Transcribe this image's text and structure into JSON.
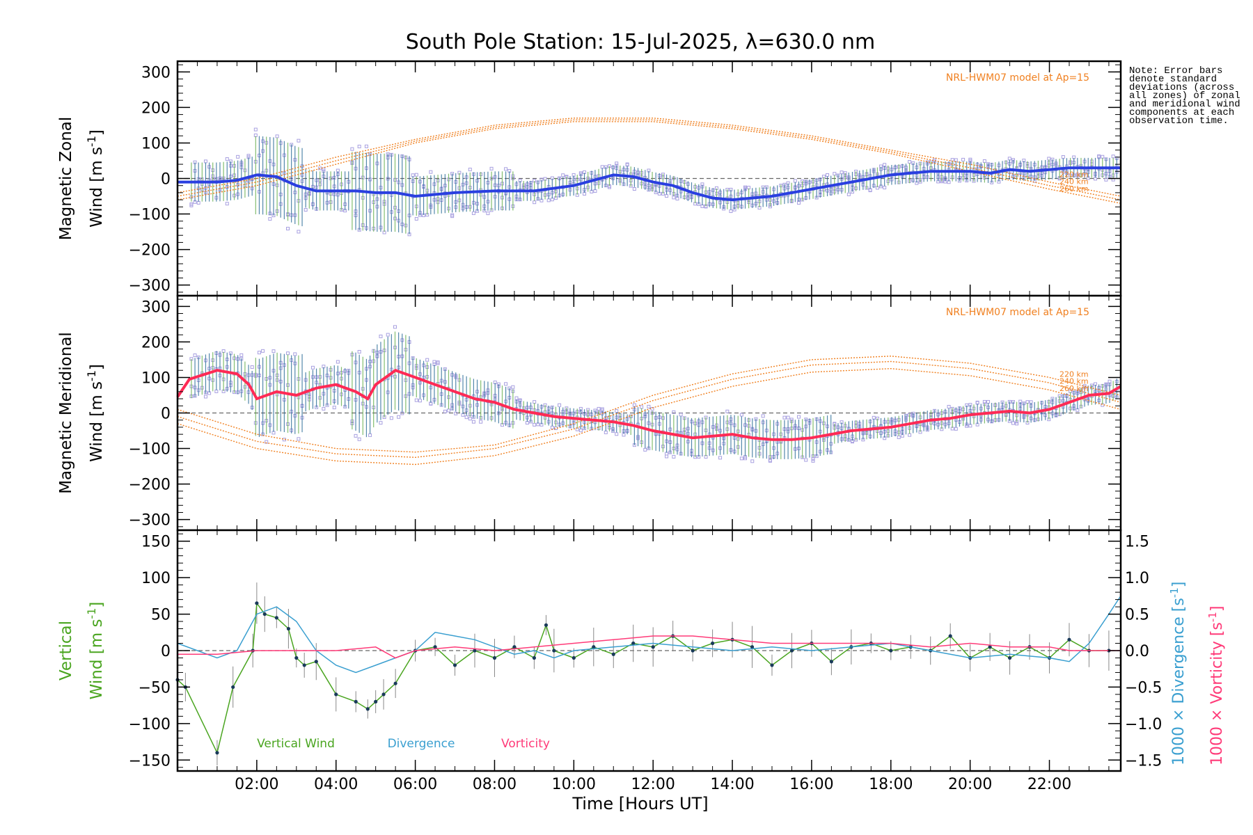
{
  "figure": {
    "title": "South Pole Station: 15-Jul-2025, λ=630.0 nm",
    "note": "Note: Error bars denote standard deviations (across all zones) of zonal and meridional wind components at each observation time."
  },
  "colors": {
    "zonal_line": "#2a3fe0",
    "meridional_line": "#ff2a55",
    "vertical": "#4aa520",
    "divergence": "#3a9fd0",
    "vorticity": "#ff3a78",
    "model": "#f08020",
    "scatter": "#a8a0e0",
    "errorbar": "#1a6090"
  },
  "chart_data": [
    {
      "id": "zonal",
      "type": "line",
      "ylabel": [
        "Magnetic Zonal",
        "Wind [m s",
        "-1",
        "]"
      ],
      "ylim": [
        -330,
        330
      ],
      "yticks": [
        300,
        200,
        100,
        0,
        -100,
        -200,
        -300
      ],
      "model_label": "NRL-HWM07 model at Ap=15",
      "model_alt_labels": [
        "220 km",
        "240 km",
        "260 km"
      ],
      "series": [
        {
          "name": "zonal mean wind",
          "x": [
            0.0,
            1.0,
            1.5,
            2.0,
            2.5,
            3.0,
            3.5,
            4.0,
            4.5,
            5.0,
            5.5,
            6.0,
            7.0,
            8.0,
            9.0,
            10.0,
            10.5,
            11.0,
            11.5,
            12.0,
            12.5,
            13.0,
            13.5,
            14.0,
            14.5,
            15.0,
            15.5,
            16.0,
            16.5,
            17.0,
            17.5,
            18.0,
            18.5,
            19.0,
            19.5,
            20.0,
            20.5,
            21.0,
            21.5,
            22.0,
            22.5,
            23.0,
            23.8
          ],
          "y": [
            -10,
            -10,
            -5,
            10,
            5,
            -20,
            -35,
            -35,
            -35,
            -40,
            -40,
            -50,
            -40,
            -35,
            -35,
            -20,
            -5,
            10,
            5,
            -10,
            -20,
            -40,
            -55,
            -60,
            -55,
            -50,
            -40,
            -30,
            -20,
            -10,
            0,
            10,
            15,
            20,
            20,
            20,
            15,
            25,
            20,
            25,
            30,
            30,
            30
          ]
        },
        {
          "name": "model 220 km",
          "x": [
            0,
            2,
            4,
            6,
            8,
            10,
            12,
            14,
            16,
            18,
            20,
            22,
            23.8
          ],
          "y": [
            -40,
            0,
            60,
            110,
            150,
            170,
            170,
            150,
            120,
            80,
            40,
            -10,
            -50
          ]
        },
        {
          "name": "model 240 km",
          "x": [
            0,
            2,
            4,
            6,
            8,
            10,
            12,
            14,
            16,
            18,
            20,
            22,
            23.8
          ],
          "y": [
            -50,
            -10,
            50,
            105,
            145,
            165,
            165,
            145,
            115,
            75,
            30,
            -20,
            -60
          ]
        },
        {
          "name": "model 260 km",
          "x": [
            0,
            2,
            4,
            6,
            8,
            10,
            12,
            14,
            16,
            18,
            20,
            22,
            23.8
          ],
          "y": [
            -60,
            -20,
            40,
            100,
            140,
            160,
            160,
            140,
            110,
            70,
            20,
            -30,
            -70
          ]
        }
      ]
    },
    {
      "id": "meridional",
      "type": "line",
      "ylabel": [
        "Magnetic Meridional",
        "Wind [m s",
        "-1",
        "]"
      ],
      "ylim": [
        -330,
        330
      ],
      "yticks": [
        300,
        200,
        100,
        0,
        -100,
        -200,
        -300
      ],
      "model_label": "NRL-HWM07 model at Ap=15",
      "model_alt_labels": [
        "220 km",
        "240 km",
        "260 km"
      ],
      "series": [
        {
          "name": "meridional mean wind",
          "x": [
            0.0,
            0.3,
            1.0,
            1.5,
            1.8,
            2.0,
            2.5,
            3.0,
            3.5,
            4.0,
            4.5,
            4.8,
            5.0,
            5.5,
            6.0,
            6.5,
            7.0,
            7.5,
            8.0,
            8.5,
            9.0,
            9.5,
            10.0,
            10.5,
            11.0,
            11.5,
            12.0,
            12.5,
            13.0,
            13.5,
            14.0,
            14.5,
            15.0,
            15.5,
            16.0,
            16.5,
            17.0,
            17.5,
            18.0,
            18.5,
            19.0,
            19.5,
            20.0,
            20.5,
            21.0,
            21.5,
            22.0,
            22.5,
            23.0,
            23.5,
            23.8
          ],
          "y": [
            45,
            95,
            120,
            110,
            80,
            40,
            60,
            50,
            70,
            80,
            60,
            40,
            80,
            120,
            100,
            80,
            60,
            40,
            30,
            10,
            0,
            -10,
            -15,
            -20,
            -25,
            -35,
            -50,
            -60,
            -70,
            -65,
            -60,
            -70,
            -75,
            -75,
            -70,
            -60,
            -50,
            -45,
            -40,
            -30,
            -20,
            -15,
            -5,
            0,
            5,
            0,
            10,
            30,
            50,
            55,
            75
          ]
        },
        {
          "name": "model 220 km",
          "x": [
            0,
            2,
            4,
            6,
            8,
            10,
            12,
            14,
            16,
            18,
            20,
            22,
            23.8
          ],
          "y": [
            10,
            -60,
            -100,
            -110,
            -90,
            -30,
            50,
            110,
            150,
            160,
            140,
            100,
            50
          ]
        },
        {
          "name": "model 240 km",
          "x": [
            0,
            2,
            4,
            6,
            8,
            10,
            12,
            14,
            16,
            18,
            20,
            22,
            23.8
          ],
          "y": [
            -10,
            -80,
            -115,
            -125,
            -100,
            -45,
            35,
            95,
            135,
            145,
            125,
            85,
            30
          ]
        },
        {
          "name": "model 260 km",
          "x": [
            0,
            2,
            4,
            6,
            8,
            10,
            12,
            14,
            16,
            18,
            20,
            22,
            23.8
          ],
          "y": [
            -30,
            -100,
            -135,
            -145,
            -120,
            -65,
            15,
            75,
            115,
            125,
            105,
            65,
            10
          ]
        }
      ]
    },
    {
      "id": "vertical",
      "type": "line",
      "ylabel_left": [
        "Vertical",
        "Wind [m s",
        "-1",
        "]"
      ],
      "ylim": [
        -165,
        165
      ],
      "yticks": [
        150,
        100,
        50,
        0,
        -50,
        -100,
        -150
      ],
      "y2label_div": [
        "1000 × Divergence [s",
        "-1",
        "]"
      ],
      "y2label_vor": [
        "1000 × Vorticity [s",
        "-1",
        "]"
      ],
      "y2lim": [
        -1.65,
        1.65
      ],
      "y2ticks": [
        "1.5",
        "1.0",
        "0.5",
        "0.0",
        "−0.5",
        "−1.0",
        "−1.5"
      ],
      "y2tickvals": [
        1.5,
        1.0,
        0.5,
        0.0,
        -0.5,
        -1.0,
        -1.5
      ],
      "legend": [
        "Vertical Wind",
        "Divergence",
        "Vorticity"
      ],
      "series": [
        {
          "name": "Vertical Wind",
          "x": [
            0.0,
            0.2,
            1.0,
            1.4,
            1.9,
            2.0,
            2.2,
            2.5,
            2.8,
            3.0,
            3.2,
            3.5,
            4.0,
            4.5,
            4.8,
            5.0,
            5.2,
            5.5,
            6.0,
            6.5,
            7.0,
            7.5,
            8.0,
            8.5,
            9.0,
            9.3,
            9.5,
            10.0,
            10.5,
            11.0,
            11.5,
            12.0,
            12.5,
            13.0,
            13.5,
            14.0,
            14.5,
            15.0,
            15.5,
            16.0,
            16.5,
            17.0,
            17.5,
            18.0,
            18.5,
            19.0,
            19.5,
            20.0,
            20.5,
            21.0,
            21.5,
            22.0,
            22.5,
            23.0,
            23.5
          ],
          "y": [
            -40,
            -50,
            -140,
            -50,
            0,
            65,
            50,
            45,
            30,
            -10,
            -20,
            -15,
            -60,
            -70,
            -80,
            -70,
            -60,
            -45,
            0,
            5,
            -20,
            0,
            -10,
            5,
            -10,
            35,
            0,
            -10,
            5,
            -5,
            10,
            5,
            20,
            0,
            10,
            15,
            5,
            -20,
            0,
            10,
            -15,
            5,
            10,
            0,
            5,
            0,
            20,
            -10,
            5,
            -10,
            5,
            -10,
            15,
            0,
            0
          ]
        },
        {
          "name": "Divergence",
          "x": [
            0.0,
            1.0,
            1.5,
            2.0,
            2.5,
            3.0,
            3.5,
            4.0,
            4.5,
            5.0,
            5.5,
            6.0,
            6.5,
            7.0,
            7.5,
            8.0,
            8.5,
            9.0,
            9.5,
            10.0,
            11.0,
            12.0,
            13.0,
            14.0,
            15.0,
            16.0,
            17.0,
            18.0,
            19.0,
            20.0,
            21.0,
            22.0,
            22.5,
            23.0,
            23.5,
            23.8
          ],
          "y": [
            0.1,
            -0.1,
            0.0,
            0.5,
            0.6,
            0.4,
            0.0,
            -0.2,
            -0.3,
            -0.2,
            -0.1,
            0.0,
            0.25,
            0.2,
            0.15,
            0.05,
            -0.05,
            0.0,
            -0.1,
            0.0,
            0.05,
            0.1,
            0.05,
            0.0,
            0.05,
            0.0,
            0.05,
            0.1,
            0.0,
            -0.1,
            -0.05,
            -0.1,
            -0.15,
            0.1,
            0.5,
            0.75
          ]
        },
        {
          "name": "Vorticity",
          "x": [
            0.0,
            1.0,
            2.0,
            3.0,
            4.0,
            5.0,
            5.5,
            6.0,
            7.0,
            8.0,
            9.0,
            10.0,
            11.0,
            12.0,
            13.0,
            14.0,
            15.0,
            16.0,
            17.0,
            18.0,
            19.0,
            20.0,
            21.0,
            22.0,
            22.5,
            23.0,
            23.5,
            23.8
          ],
          "y": [
            -0.05,
            -0.05,
            0.0,
            0.0,
            0.0,
            0.05,
            -0.1,
            0.0,
            0.05,
            0.0,
            0.05,
            0.1,
            0.15,
            0.2,
            0.2,
            0.15,
            0.1,
            0.1,
            0.1,
            0.1,
            0.05,
            0.1,
            0.05,
            0.05,
            0.0,
            0.0,
            0.0,
            0.0
          ]
        }
      ]
    }
  ],
  "xaxis": {
    "xlabel": "Time [Hours UT]",
    "xlim": [
      0,
      23.8
    ],
    "ticks": [
      2,
      4,
      6,
      8,
      10,
      12,
      14,
      16,
      18,
      20,
      22
    ],
    "ticklabels": [
      "02:00",
      "04:00",
      "06:00",
      "08:00",
      "10:00",
      "12:00",
      "14:00",
      "16:00",
      "18:00",
      "20:00",
      "22:00"
    ]
  }
}
